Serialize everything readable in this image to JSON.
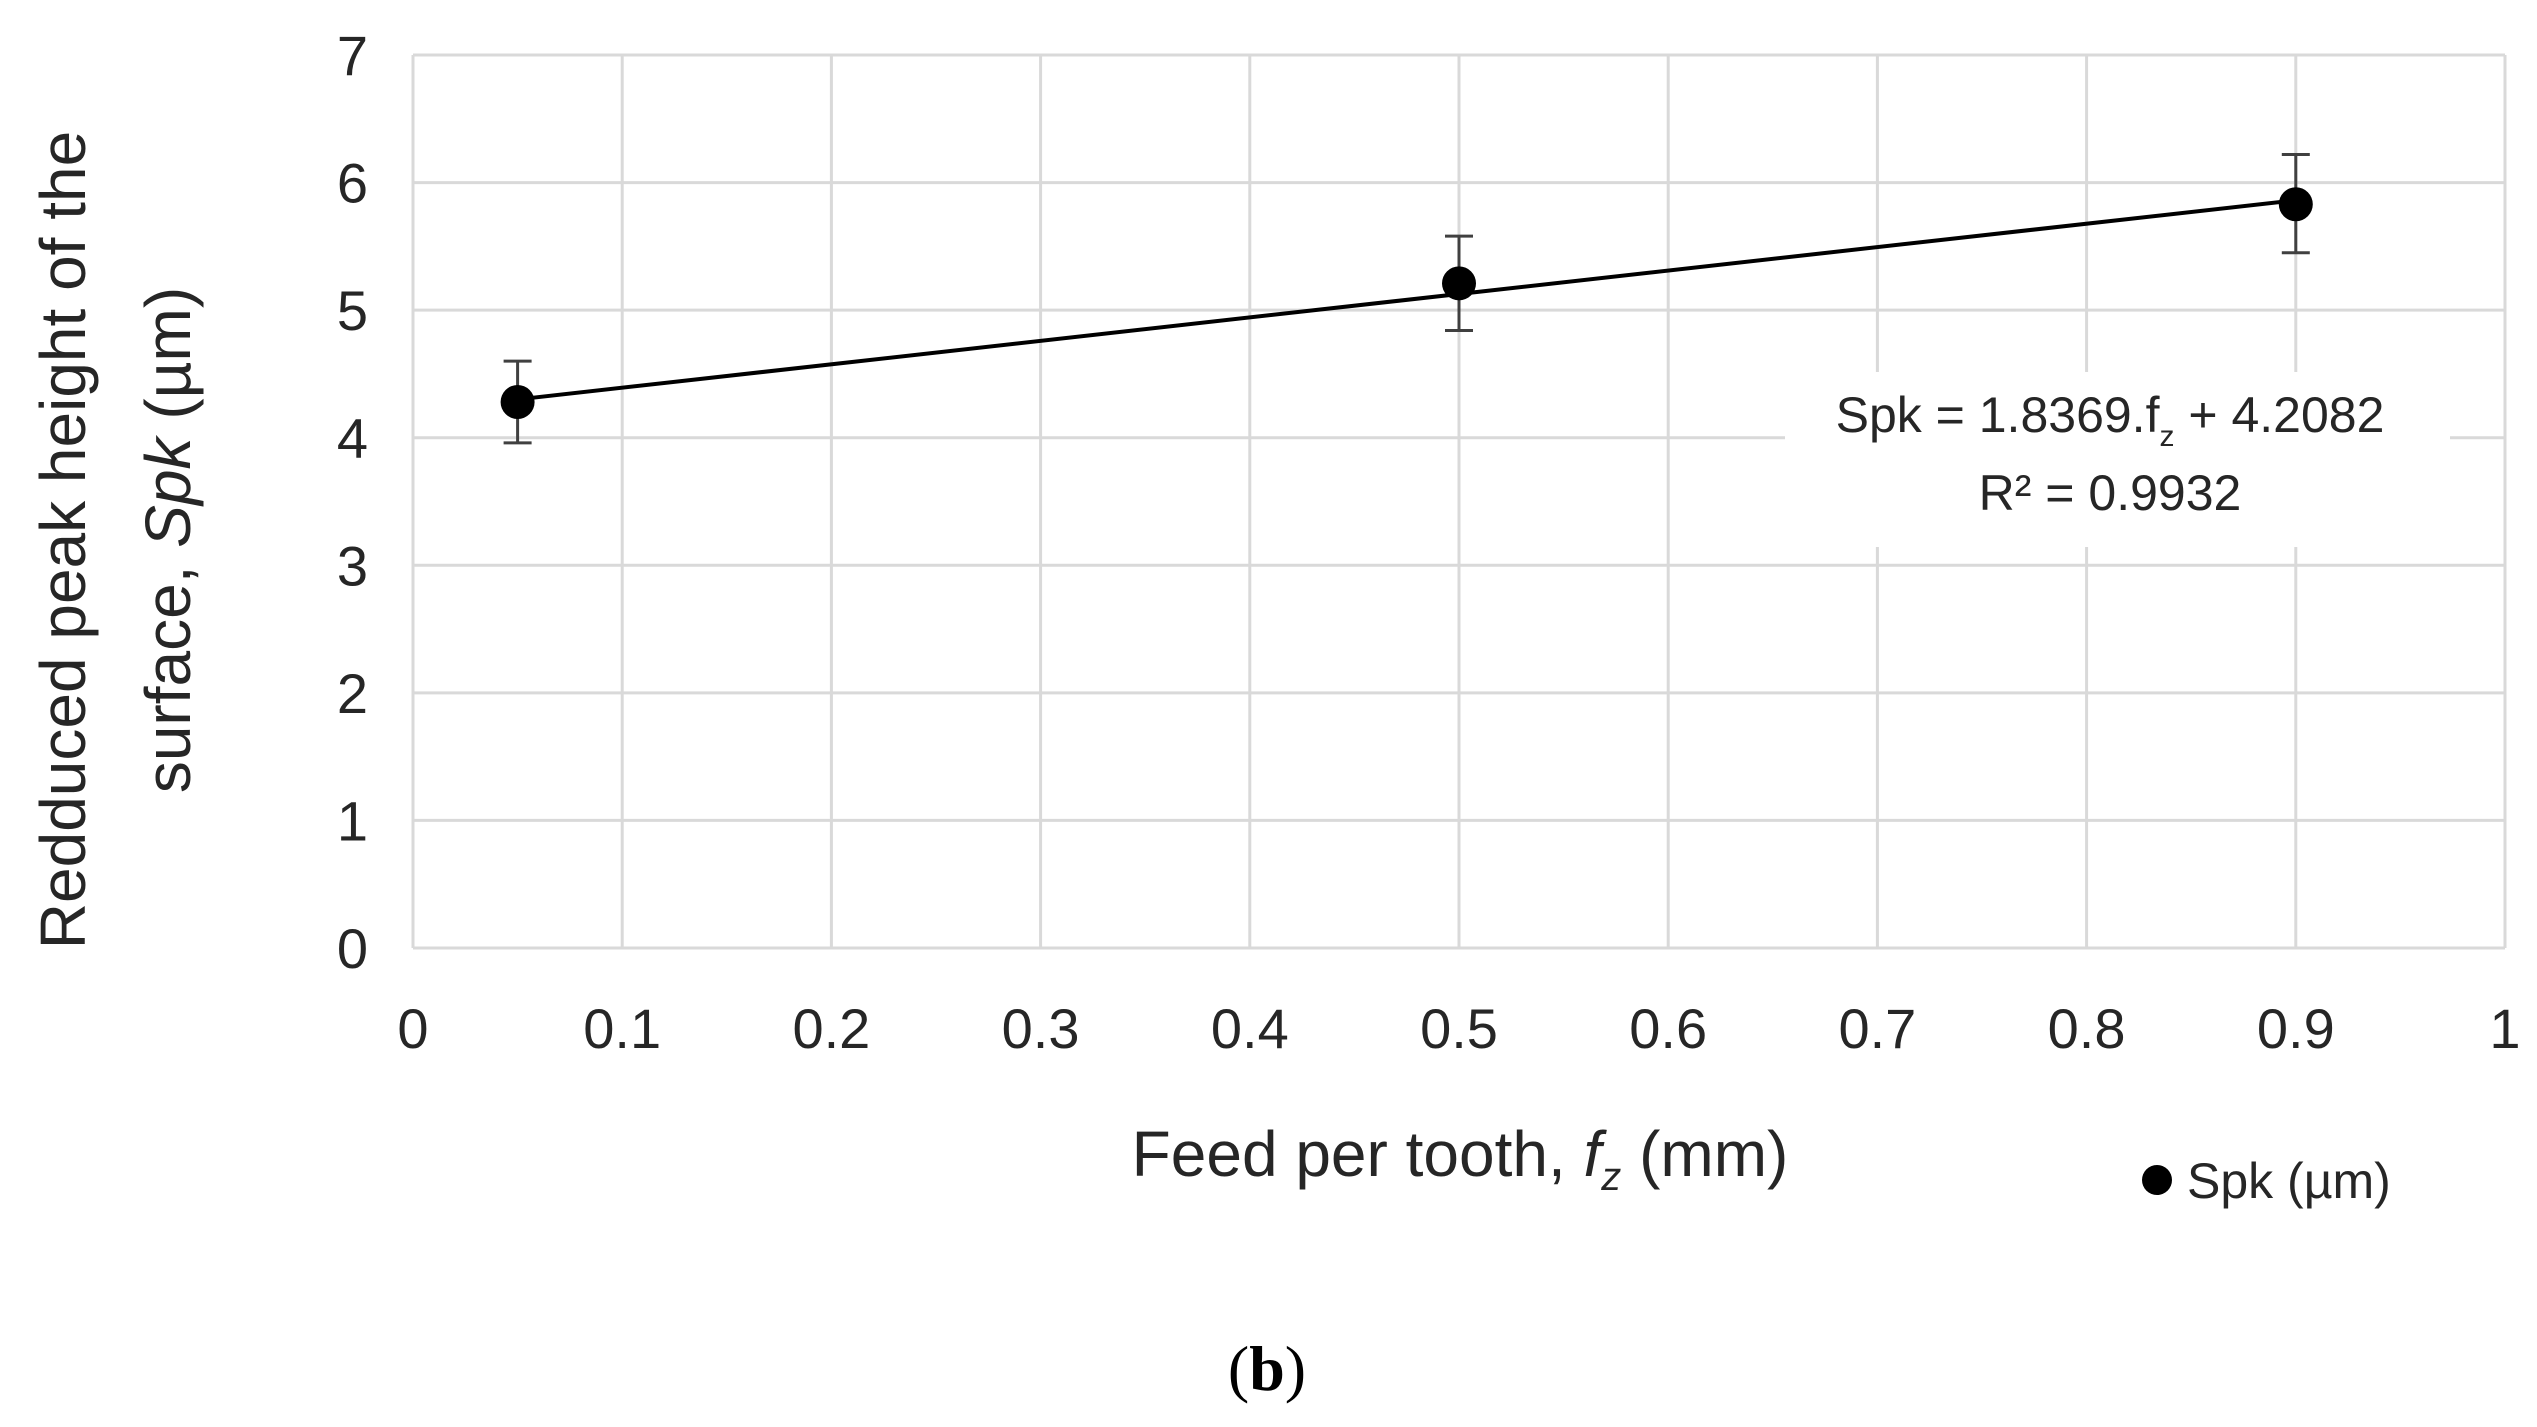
{
  "chart_data": {
    "type": "scatter",
    "series": [
      {
        "name": "Spk (µm)",
        "x": [
          0.05,
          0.5,
          0.9
        ],
        "y": [
          4.28,
          5.21,
          5.83
        ],
        "error_low": [
          3.96,
          4.84,
          5.45
        ],
        "error_high": [
          4.6,
          5.58,
          6.22
        ],
        "color": "#000000"
      }
    ],
    "trendline": {
      "type": "linear",
      "slope": 1.8369,
      "intercept": 4.2082,
      "x_range": [
        0.05,
        0.9
      ],
      "equation_parts": {
        "prefix": "Spk = 1.8369.f",
        "subscript": "z",
        "suffix": " + 4.2082"
      },
      "r_squared_label": "R² = 0.9932"
    },
    "xlim": [
      0,
      1
    ],
    "ylim": [
      0,
      7
    ],
    "xticks": [
      0,
      0.1,
      0.2,
      0.3,
      0.4,
      0.5,
      0.6,
      0.7,
      0.8,
      0.9,
      1
    ],
    "yticks": [
      0,
      1,
      2,
      3,
      4,
      5,
      6,
      7
    ],
    "xtick_labels": [
      "0",
      "0.1",
      "0.2",
      "0.3",
      "0.4",
      "0.5",
      "0.6",
      "0.7",
      "0.8",
      "0.9",
      "1"
    ],
    "ytick_labels": [
      "0",
      "1",
      "2",
      "3",
      "4",
      "5",
      "6",
      "7"
    ],
    "xlabel_parts": {
      "before": "Feed per tooth, ",
      "italic": "f",
      "subscript": "z",
      "after": " (mm)"
    },
    "ylabel_line1": "Redduced peak height of the",
    "ylabel_line2_parts": {
      "before": "surface, ",
      "italic": "Spk",
      "after": " (µm)"
    },
    "legend": {
      "label": "Spk (µm)",
      "position": "bottom-right"
    },
    "grid": true,
    "caption_parts": {
      "open": "(",
      "bold": "b",
      "close": ")"
    }
  }
}
